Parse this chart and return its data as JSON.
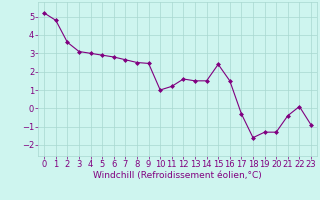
{
  "x": [
    0,
    1,
    2,
    3,
    4,
    5,
    6,
    7,
    8,
    9,
    10,
    11,
    12,
    13,
    14,
    15,
    16,
    17,
    18,
    19,
    20,
    21,
    22,
    23
  ],
  "y": [
    5.2,
    4.8,
    3.6,
    3.1,
    3.0,
    2.9,
    2.8,
    2.65,
    2.5,
    2.45,
    1.0,
    1.2,
    1.6,
    1.5,
    1.5,
    2.4,
    1.5,
    -0.3,
    -1.6,
    -1.3,
    -1.3,
    -0.4,
    0.1,
    -0.9
  ],
  "line_color": "#800080",
  "marker": "D",
  "marker_size": 2.0,
  "bg_color": "#cef5ef",
  "grid_color": "#a8d8d0",
  "xlabel": "Windchill (Refroidissement éolien,°C)",
  "xlim": [
    -0.5,
    23.5
  ],
  "ylim": [
    -2.6,
    5.8
  ],
  "yticks": [
    -2,
    -1,
    0,
    1,
    2,
    3,
    4,
    5
  ],
  "xticks": [
    0,
    1,
    2,
    3,
    4,
    5,
    6,
    7,
    8,
    9,
    10,
    11,
    12,
    13,
    14,
    15,
    16,
    17,
    18,
    19,
    20,
    21,
    22,
    23
  ],
  "axis_fontsize": 6.5,
  "tick_fontsize": 6.0
}
